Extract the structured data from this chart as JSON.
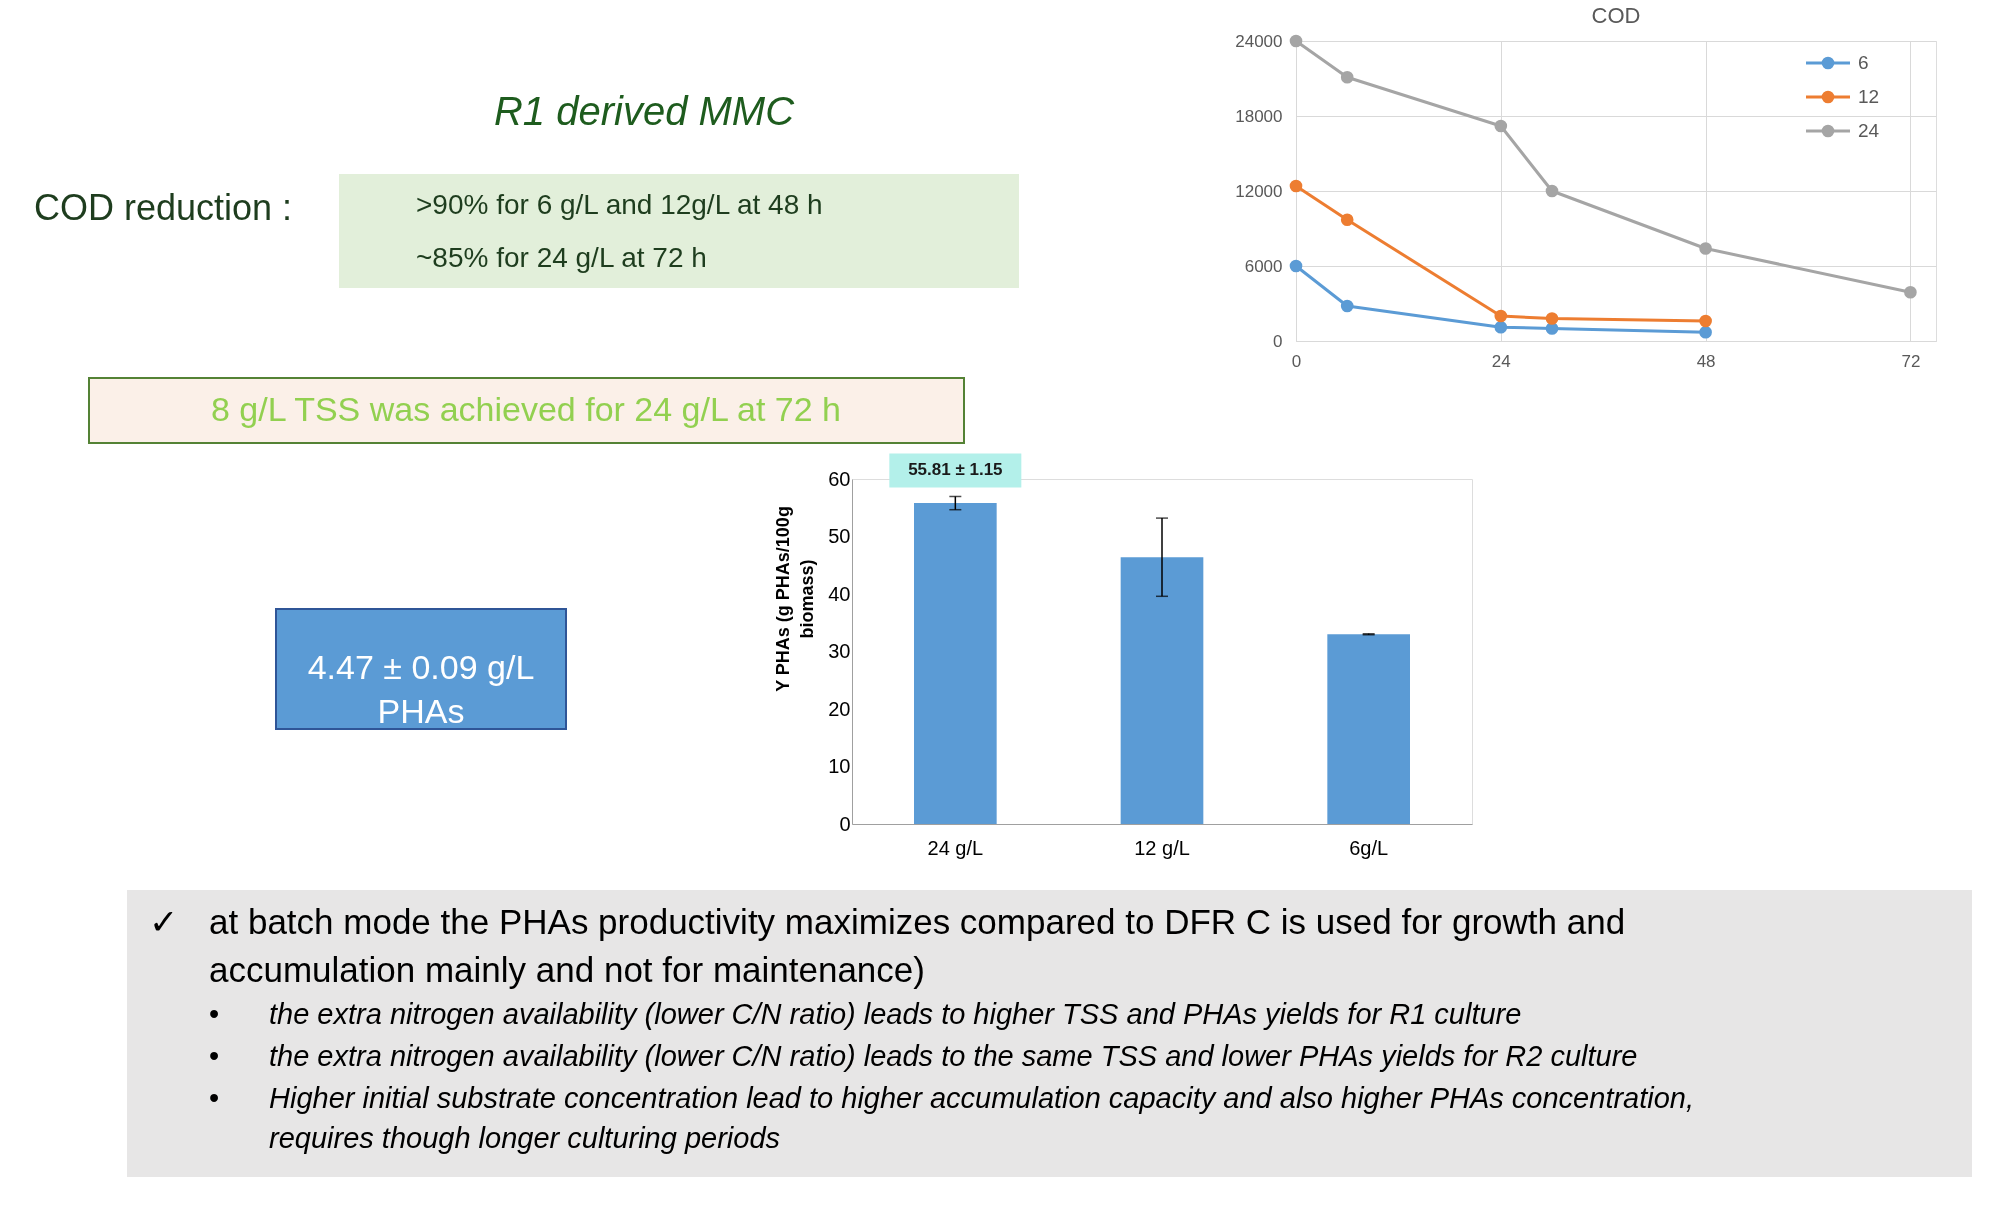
{
  "chart_data": [
    {
      "type": "other",
      "title": "R1 derived MMC",
      "annotations": [
        "COD reduction :",
        ">90% for 6 g/L and 12g/L at 48 h",
        "~85% for 24 g/L at 72 h",
        "8 g/L TSS was achieved for 24 g/L at 72 h"
      ]
    },
    {
      "type": "line",
      "title": "COD",
      "marker": "circle",
      "grid": true,
      "legend": "top right",
      "xlim": [
        0,
        75
      ],
      "xticks": [
        0,
        24,
        48,
        72
      ],
      "ylim": [
        0,
        24000
      ],
      "yticks": [
        0,
        6000,
        12000,
        18000,
        24000
      ],
      "x": [
        0,
        6,
        24,
        30,
        48,
        72
      ],
      "series": [
        {
          "name": "6",
          "color": "#5b9bd5",
          "values": [
            6000,
            2800,
            1100,
            1000,
            700,
            null
          ]
        },
        {
          "name": "12",
          "color": "#ed7d31",
          "values": [
            12400,
            9700,
            2000,
            1800,
            1600,
            null
          ]
        },
        {
          "name": "24",
          "color": "#a5a5a5",
          "values": [
            24000,
            21100,
            17200,
            12000,
            7400,
            3900
          ]
        }
      ]
    },
    {
      "type": "other",
      "annotations": [
        "4.47 ± 0.09 g/L PHAs"
      ]
    },
    {
      "type": "bar",
      "ylabel": "Y PHAs (g PHAs/100g biomass)",
      "categories": [
        "24 g/L",
        "12 g/L",
        "6g/L"
      ],
      "values": [
        55.81,
        46.4,
        33.0
      ],
      "color": "#5b9bd5",
      "errors": [
        1.15,
        6.8,
        0.1
      ],
      "value_labels": [
        "55.81 ± 1.15",
        null,
        null
      ],
      "ylim": [
        0,
        60
      ],
      "yticks": [
        0,
        10,
        20,
        30,
        40,
        50,
        60
      ]
    },
    {
      "type": "other",
      "annotations": [
        "✓ at batch mode the PHAs productivity maximizes compared to DFR C is used for growth and accumulation mainly and not for maintenance)",
        "• the extra nitrogen availability (lower C/N ratio) leads to higher TSS and PHAs yields for R1 culture",
        "• the extra nitrogen availability (lower C/N ratio) leads to the same TSS and lower PHAs yields for R2 culture",
        "• Higher initial substrate concentration lead to higher  accumulation capacity and also higher  PHAs concentration, requires though longer culturing periods"
      ]
    }
  ]
}
